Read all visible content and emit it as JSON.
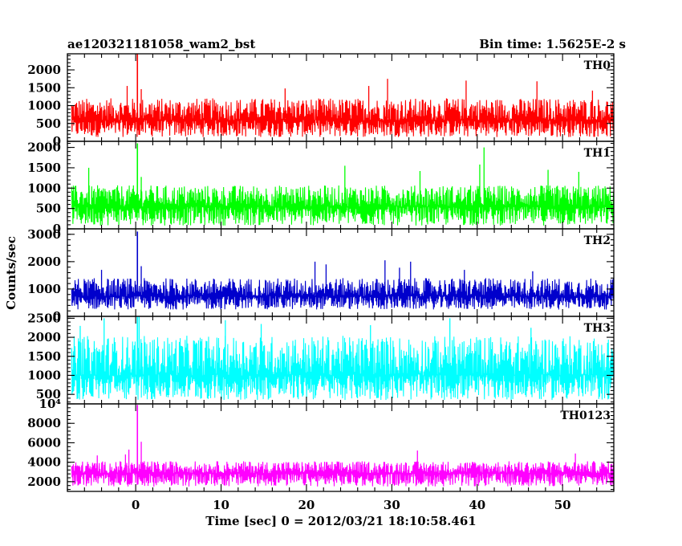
{
  "header": {
    "title": "ae120321181058_wam2_bst",
    "bin_time": "Bin time: 1.5625E-2 s"
  },
  "chart_data": {
    "type": "line",
    "title": "ae120321181058_wam2_bst",
    "xlabel": "Time [sec] 0 = 2012/03/21 18:10:58.461",
    "ylabel": "Counts/sec",
    "xlim": [
      -8,
      56
    ],
    "x_range": [
      -7.5,
      56
    ],
    "x_ticks": [
      0,
      10,
      20,
      30,
      40,
      50
    ],
    "x_tick_labels": [
      "0",
      "10",
      "20",
      "30",
      "40",
      "50"
    ],
    "burst_time": 0.2,
    "grid": false,
    "panels": [
      {
        "name": "TH0",
        "color": "#ff0000",
        "ylim": [
          0,
          2450
        ],
        "y_ticks": [
          0,
          500,
          1000,
          1500,
          2000
        ],
        "y_tick_labels": [
          "0",
          "500",
          "1000",
          "1500",
          "2000"
        ],
        "noise_min": 120,
        "noise_max": 1300,
        "baseline": 650,
        "peak": 2450,
        "spikes": [
          [
            29.5,
            1750
          ],
          [
            38.7,
            1700
          ],
          [
            47.0,
            1680
          ],
          [
            -1.0,
            1550
          ],
          [
            27.3,
            1550
          ],
          [
            53.5,
            1420
          ],
          [
            17.5,
            1480
          ]
        ]
      },
      {
        "name": "TH1",
        "color": "#00ff00",
        "ylim": [
          0,
          2150
        ],
        "y_ticks": [
          0,
          500,
          1000,
          1500,
          2000
        ],
        "y_tick_labels": [
          "0",
          "500",
          "1000",
          "1500",
          "2000"
        ],
        "noise_min": 80,
        "noise_max": 1150,
        "baseline": 600,
        "peak": 2100,
        "spikes": [
          [
            40.8,
            2000
          ],
          [
            -5.5,
            1500
          ],
          [
            24.5,
            1550
          ],
          [
            48.3,
            1450
          ],
          [
            40.3,
            1580
          ],
          [
            51.9,
            1400
          ],
          [
            33.3,
            1420
          ]
        ]
      },
      {
        "name": "TH2",
        "color": "#0000cc",
        "ylim": [
          0,
          3200
        ],
        "y_ticks": [
          0,
          1000,
          2000,
          3000
        ],
        "y_tick_labels": [
          "0",
          "1000",
          "2000",
          "3000"
        ],
        "noise_min": 250,
        "noise_max": 1500,
        "baseline": 800,
        "peak": 3100,
        "spikes": [
          [
            21.0,
            2000
          ],
          [
            29.2,
            2050
          ],
          [
            32.2,
            2000
          ],
          [
            30.9,
            1780
          ],
          [
            22.3,
            1900
          ],
          [
            38.5,
            1700
          ],
          [
            46.5,
            1650
          ],
          [
            -4.0,
            1700
          ]
        ]
      },
      {
        "name": "TH3",
        "color": "#00ffff",
        "ylim": [
          250,
          2550
        ],
        "y_ticks": [
          500,
          1000,
          1500,
          2000,
          2500
        ],
        "y_tick_labels": [
          "500",
          "1000",
          "1500",
          "2000",
          "2500"
        ],
        "noise_min": 350,
        "noise_max": 2200,
        "baseline": 1100,
        "peak": 2550,
        "spikes": [
          [
            -3.7,
            2500
          ],
          [
            0.4,
            2550
          ],
          [
            10.5,
            2450
          ],
          [
            36.8,
            2500
          ],
          [
            14.7,
            2350
          ],
          [
            -6.5,
            2300
          ],
          [
            27.5,
            2320
          ],
          [
            46.3,
            2250
          ]
        ]
      },
      {
        "name": "TH0123",
        "color": "#ff00ff",
        "ylim": [
          1000,
          10000
        ],
        "y_ticks": [
          2000,
          4000,
          6000,
          8000,
          10000
        ],
        "y_tick_labels": [
          "2000",
          "4000",
          "6000",
          "8000",
          "10⁴"
        ],
        "noise_min": 1500,
        "noise_max": 4300,
        "baseline": 3000,
        "peak": 9900,
        "spikes": [
          [
            -0.8,
            5300
          ],
          [
            33.0,
            5200
          ],
          [
            -1.2,
            4800
          ],
          [
            51.5,
            4900
          ],
          [
            -4.5,
            4700
          ]
        ]
      }
    ]
  }
}
